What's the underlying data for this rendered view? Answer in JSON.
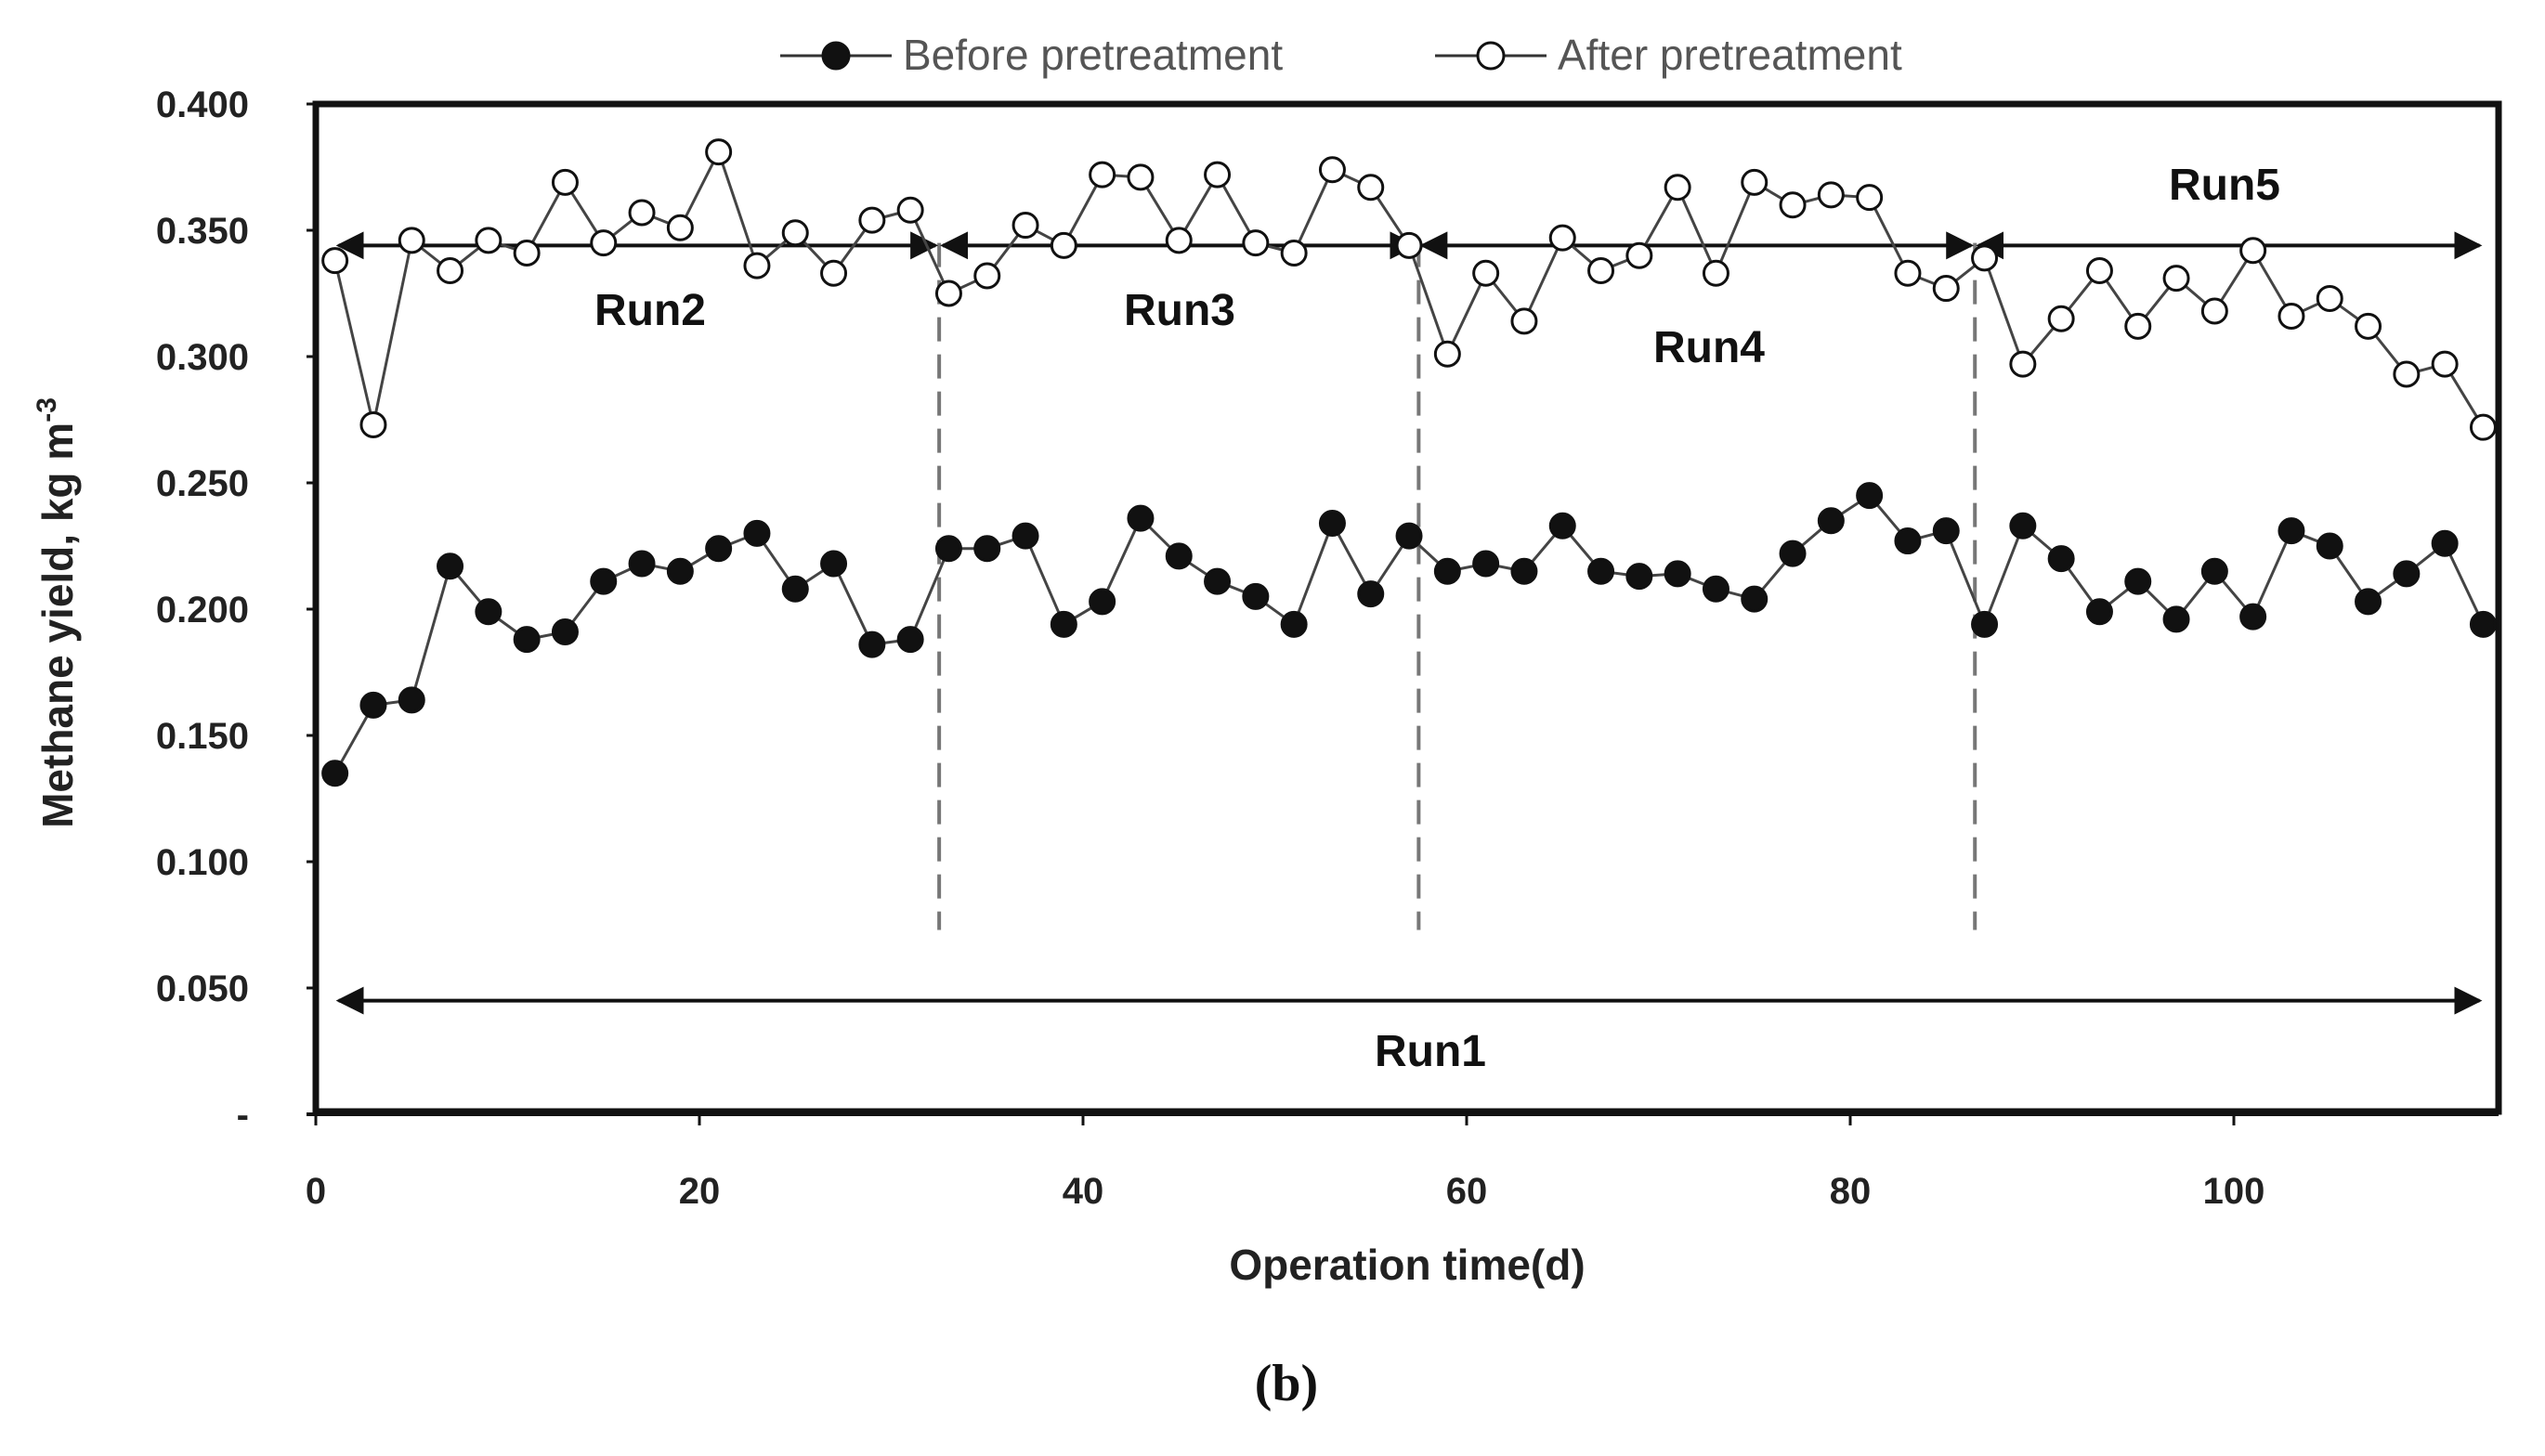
{
  "chart_data": {
    "type": "line",
    "title": "",
    "caption": "(b)",
    "xlabel": "Operation time(d)",
    "ylabel": "Methane yield, kg m",
    "ylabel_sup": "-3",
    "xlim": [
      0,
      114
    ],
    "ylim": [
      0,
      0.4
    ],
    "x_ticks": [
      "0",
      "20",
      "40",
      "60",
      "80",
      "100"
    ],
    "x_tick_values": [
      0,
      20,
      40,
      60,
      80,
      100
    ],
    "y_ticks": [
      "-",
      "0.050",
      "0.100",
      "0.150",
      "0.200",
      "0.250",
      "0.300",
      "0.350",
      "0.400"
    ],
    "y_tick_values": [
      0,
      0.05,
      0.1,
      0.15,
      0.2,
      0.25,
      0.3,
      0.35,
      0.4
    ],
    "grid": false,
    "legend_position": "top-center",
    "series": [
      {
        "name": "Before pretreatment",
        "marker": "filled-circle",
        "x": [
          1,
          3,
          5,
          7,
          9,
          11,
          13,
          15,
          17,
          19,
          21,
          23,
          25,
          27,
          29,
          31,
          33,
          35,
          37,
          39,
          41,
          43,
          45,
          47,
          49,
          51,
          53,
          55,
          57,
          59,
          61,
          63,
          65,
          67,
          69,
          71,
          73,
          75,
          77,
          79,
          81,
          83,
          85,
          87,
          89,
          91,
          93,
          95,
          97,
          99,
          101,
          103,
          105,
          107,
          109,
          111,
          113
        ],
        "values": [
          0.135,
          0.162,
          0.164,
          0.217,
          0.199,
          0.188,
          0.191,
          0.211,
          0.218,
          0.215,
          0.224,
          0.23,
          0.208,
          0.218,
          0.186,
          0.188,
          0.224,
          0.224,
          0.229,
          0.194,
          0.203,
          0.236,
          0.221,
          0.211,
          0.205,
          0.194,
          0.234,
          0.206,
          0.229,
          0.215,
          0.218,
          0.215,
          0.233,
          0.215,
          0.213,
          0.214,
          0.208,
          0.204,
          0.222,
          0.235,
          0.245,
          0.227,
          0.231,
          0.194,
          0.233,
          0.22,
          0.199,
          0.211,
          0.196,
          0.215,
          0.197,
          0.231,
          0.225,
          0.203,
          0.214,
          0.226,
          0.194
        ]
      },
      {
        "name": "After pretreatment",
        "marker": "open-circle",
        "x": [
          1,
          3,
          5,
          7,
          9,
          11,
          13,
          15,
          17,
          19,
          21,
          23,
          25,
          27,
          29,
          31,
          33,
          35,
          37,
          39,
          41,
          43,
          45,
          47,
          49,
          51,
          53,
          55,
          57,
          59,
          61,
          63,
          65,
          67,
          69,
          71,
          73,
          75,
          77,
          79,
          81,
          83,
          85,
          87,
          89,
          91,
          93,
          95,
          97,
          99,
          101,
          103,
          105,
          107,
          109,
          111,
          113
        ],
        "values": [
          0.338,
          0.273,
          0.346,
          0.334,
          0.346,
          0.341,
          0.369,
          0.345,
          0.357,
          0.351,
          0.381,
          0.336,
          0.349,
          0.333,
          0.354,
          0.358,
          0.325,
          0.332,
          0.352,
          0.344,
          0.372,
          0.371,
          0.346,
          0.372,
          0.345,
          0.341,
          0.374,
          0.367,
          0.344,
          0.301,
          0.333,
          0.314,
          0.347,
          0.334,
          0.34,
          0.367,
          0.333,
          0.369,
          0.36,
          0.364,
          0.363,
          0.333,
          0.327,
          0.339,
          0.297,
          0.315,
          0.334,
          0.312,
          0.331,
          0.318,
          0.342,
          0.316,
          0.323,
          0.312,
          0.293,
          0.297,
          0.272
        ]
      }
    ],
    "run_dividers_x": [
      32.5,
      57.5,
      86.5
    ],
    "run_arrows": [
      {
        "label": "Run1",
        "x_start": 1,
        "x_end": 113,
        "y": 0.045
      },
      {
        "label": "Run2",
        "x_start": 1,
        "x_end": 32.5,
        "y": 0.344
      },
      {
        "label": "Run3",
        "x_start": 32.5,
        "x_end": 57.5,
        "y": 0.344
      },
      {
        "label": "Run4",
        "x_start": 57.5,
        "x_end": 86.5,
        "y": 0.344
      },
      {
        "label": "Run5",
        "x_start": 86.5,
        "x_end": 113,
        "y": 0.344
      }
    ]
  }
}
